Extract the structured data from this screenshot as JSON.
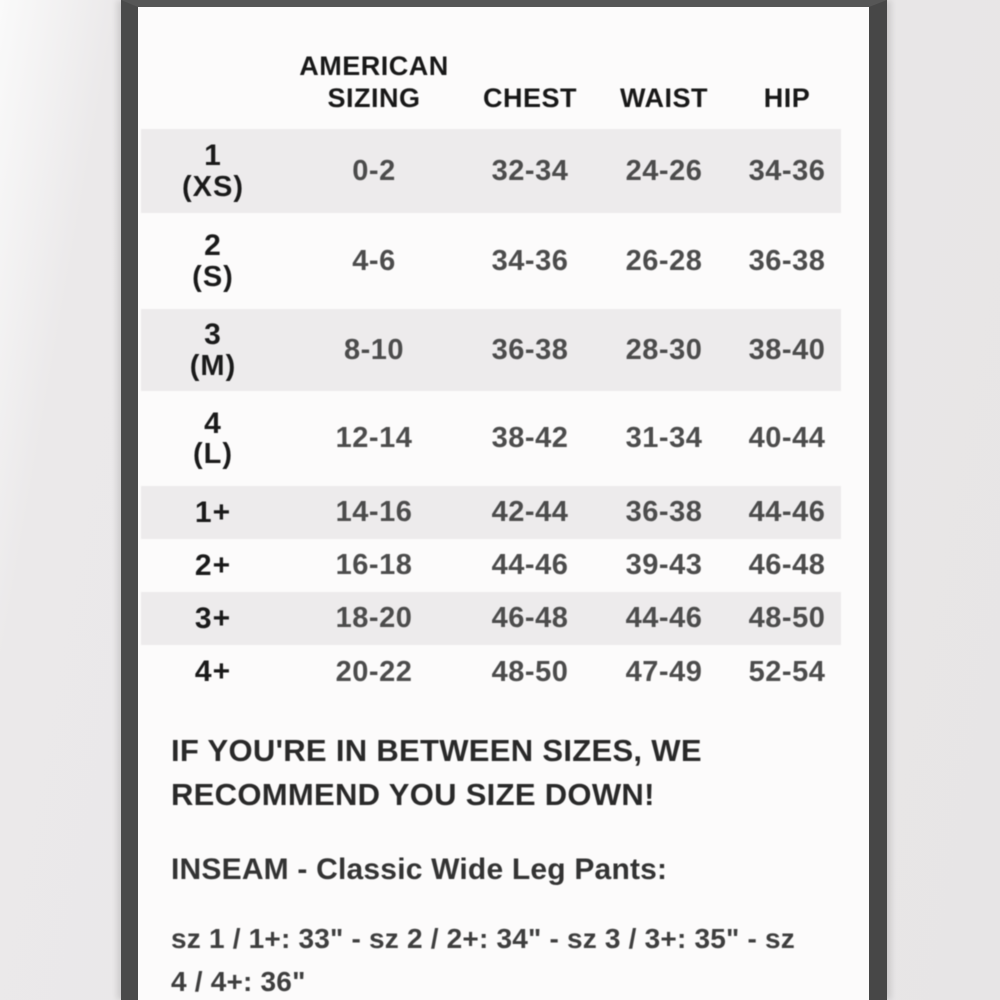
{
  "table": {
    "columns": [
      "AMERICAN SIZING",
      "CHEST",
      "WAIST",
      "HIP"
    ],
    "rows": [
      {
        "size": "1",
        "size_note": "(XS)",
        "american_sizing": "0-2",
        "chest": "32-34",
        "waist": "24-26",
        "hip": "34-36"
      },
      {
        "size": "2",
        "size_note": "(S)",
        "american_sizing": "4-6",
        "chest": "34-36",
        "waist": "26-28",
        "hip": "36-38"
      },
      {
        "size": "3",
        "size_note": "(M)",
        "american_sizing": "8-10",
        "chest": "36-38",
        "waist": "28-30",
        "hip": "38-40"
      },
      {
        "size": "4",
        "size_note": "(L)",
        "american_sizing": "12-14",
        "chest": "38-42",
        "waist": "31-34",
        "hip": "40-44"
      },
      {
        "size": "1+",
        "size_note": "",
        "american_sizing": "14-16",
        "chest": "42-44",
        "waist": "36-38",
        "hip": "44-46"
      },
      {
        "size": "2+",
        "size_note": "",
        "american_sizing": "16-18",
        "chest": "44-46",
        "waist": "39-43",
        "hip": "46-48"
      },
      {
        "size": "3+",
        "size_note": "",
        "american_sizing": "18-20",
        "chest": "46-48",
        "waist": "44-46",
        "hip": "48-50"
      },
      {
        "size": "4+",
        "size_note": "",
        "american_sizing": "20-22",
        "chest": "48-50",
        "waist": "47-49",
        "hip": "52-54"
      }
    ]
  },
  "notes": {
    "between_line1": "IF YOU'RE IN BETWEEN SIZES, WE",
    "between_line2": "RECOMMEND YOU SIZE DOWN!",
    "inseam_title": "INSEAM - Classic Wide Leg Pants:",
    "inseam_line1": "sz 1 / 1+: 33\" - sz 2 / 2+: 34\" - sz 3 / 3+: 35\" - sz",
    "inseam_line2": "4 / 4+: 36\""
  },
  "colors": {
    "frame": "#4a4a4a",
    "stripe": "#edebec",
    "card_background": "#fcfbfb",
    "page_background": "#e7e5e6",
    "header_text": "#181818",
    "value_text": "#4c4c4c"
  }
}
